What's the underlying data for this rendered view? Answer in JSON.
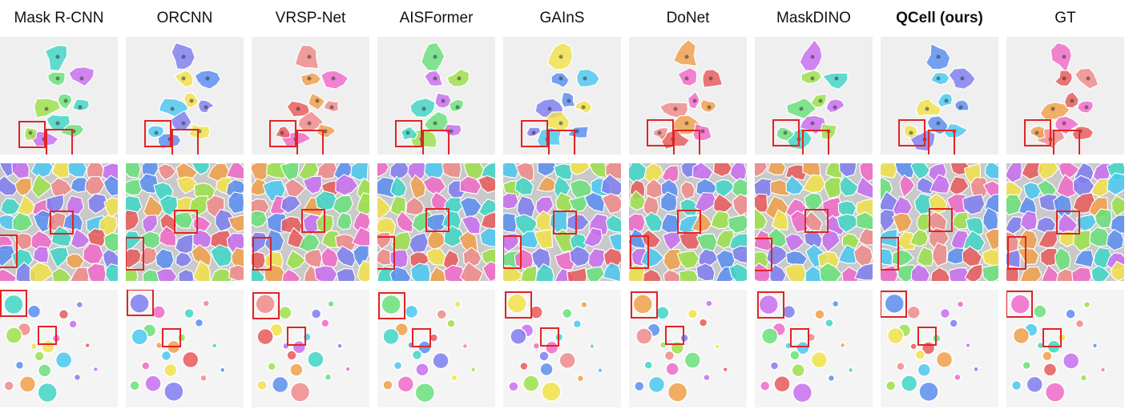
{
  "figure": {
    "columns": [
      {
        "title": "Mask R-CNN",
        "bold": false
      },
      {
        "title": "ORCNN",
        "bold": false
      },
      {
        "title": "VRSP-Net",
        "bold": false
      },
      {
        "title": "AISFormer",
        "bold": false
      },
      {
        "title": "GAInS",
        "bold": false
      },
      {
        "title": "DoNet",
        "bold": false
      },
      {
        "title": "MaskDINO",
        "bold": false
      },
      {
        "title": "QCell (ours)",
        "bold": true
      },
      {
        "title": "GT",
        "bold": false
      }
    ],
    "rows": [
      {
        "kind": "sparse-overlapping-cells"
      },
      {
        "kind": "dense-tiled-cells"
      },
      {
        "kind": "round-nuclei"
      }
    ]
  },
  "colors": {
    "highlight_box": "#e02424",
    "panel_background": "#f2f2f2",
    "palette": [
      "#3fd6c6",
      "#7f7ef0",
      "#f08a8a",
      "#69e07a",
      "#f2e24a",
      "#f0a04a",
      "#c86ef0",
      "#5a8ef0",
      "#f06ac8",
      "#9ce04a",
      "#4ac8f0",
      "#e85a5a"
    ]
  }
}
